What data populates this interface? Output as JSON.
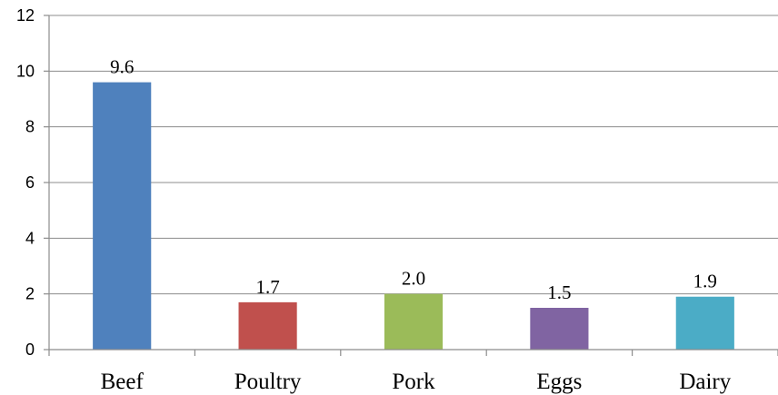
{
  "chart_data": {
    "type": "bar",
    "title": "",
    "xlabel": "",
    "ylabel": "",
    "categories": [
      "Beef",
      "Poultry",
      "Pork",
      "Eggs",
      "Dairy"
    ],
    "values": [
      9.6,
      1.7,
      2.0,
      1.5,
      1.9
    ],
    "data_labels": [
      "9.6",
      "1.7",
      "2.0",
      "1.5",
      "1.9"
    ],
    "colors": [
      "#4f81bd",
      "#c0504d",
      "#9bbb59",
      "#8064a2",
      "#4bacc6"
    ],
    "ylim": [
      0,
      12
    ],
    "yticks": [
      0,
      2,
      4,
      6,
      8,
      10,
      12
    ],
    "grid": true,
    "legend": "none"
  }
}
